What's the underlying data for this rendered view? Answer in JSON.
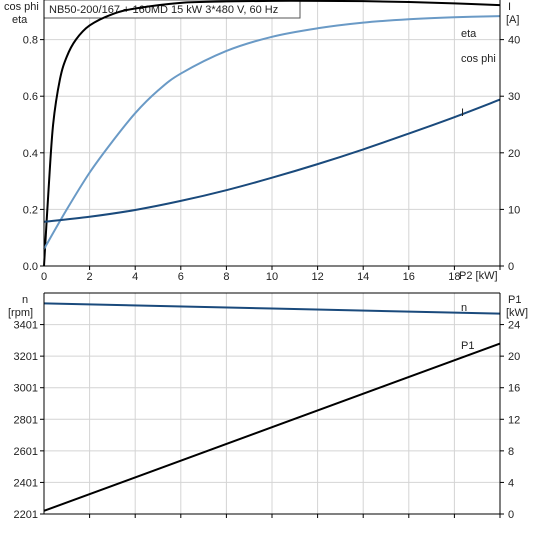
{
  "colors": {
    "eta": "#000000",
    "cosphi": "#6a9ac6",
    "current": "#1a4a7c",
    "speed": "#1a4a7c",
    "p1": "#000000",
    "grid": "#d4d4d4"
  },
  "chart_data": [
    {
      "type": "line",
      "title": "NB50-200/167 + 160MD   15 kW   3*480 V, 60 Hz",
      "xlabel": "P2 [kW]",
      "x_ticks": [
        "0",
        "2",
        "4",
        "6",
        "8",
        "10",
        "12",
        "14",
        "16",
        "18"
      ],
      "xlim": [
        0,
        20
      ],
      "y_left_label_1": "cos phi",
      "y_left_label_2": "eta",
      "y_left_ticks": [
        "0.0",
        "0.2",
        "0.4",
        "0.6",
        "0.8"
      ],
      "ylim_left": [
        0,
        0.94
      ],
      "y_right_label_1": "I",
      "y_right_label_2": "[A]",
      "y_right_ticks": [
        "0",
        "10",
        "20",
        "30",
        "40"
      ],
      "ylim_right": [
        0,
        47
      ],
      "grid": true,
      "series": [
        {
          "name": "eta",
          "axis": "left",
          "x": [
            0,
            0.2,
            0.4,
            0.7,
            1.0,
            1.4,
            2,
            3,
            4,
            6,
            8,
            10,
            12,
            14,
            16,
            18,
            20
          ],
          "values": [
            0,
            0.27,
            0.5,
            0.66,
            0.74,
            0.8,
            0.85,
            0.89,
            0.91,
            0.93,
            0.935,
            0.937,
            0.937,
            0.936,
            0.933,
            0.928,
            0.922
          ]
        },
        {
          "name": "cos phi",
          "axis": "left",
          "x": [
            0,
            1,
            2,
            3,
            4,
            5,
            6,
            8,
            10,
            12,
            14,
            16,
            18,
            20
          ],
          "values": [
            0.06,
            0.2,
            0.33,
            0.44,
            0.54,
            0.62,
            0.68,
            0.76,
            0.81,
            0.84,
            0.86,
            0.872,
            0.879,
            0.883
          ]
        },
        {
          "name": "I",
          "axis": "right",
          "x": [
            0,
            2,
            4,
            6,
            8,
            10,
            12,
            14,
            16,
            18,
            20
          ],
          "values": [
            7.8,
            8.7,
            9.9,
            11.5,
            13.4,
            15.6,
            18.0,
            20.6,
            23.4,
            26.3,
            29.4
          ]
        }
      ]
    },
    {
      "type": "line",
      "xlim": [
        0,
        20
      ],
      "y_left_label_1": "n",
      "y_left_label_2": "[rpm]",
      "y_left_ticks": [
        "2201",
        "2401",
        "2601",
        "2801",
        "3001",
        "3201",
        "3401"
      ],
      "ylim_left": [
        2201,
        3601
      ],
      "y_right_label_1": "P1",
      "y_right_label_2": "[kW]",
      "y_right_ticks": [
        "0",
        "4",
        "8",
        "12",
        "16",
        "20",
        "24"
      ],
      "ylim_right": [
        0,
        28
      ],
      "grid": true,
      "series": [
        {
          "name": "n",
          "axis": "left",
          "x": [
            0,
            20
          ],
          "values": [
            3535,
            3470
          ]
        },
        {
          "name": "P1",
          "axis": "right",
          "x": [
            0,
            20
          ],
          "values": [
            0.4,
            21.6
          ]
        }
      ]
    }
  ]
}
